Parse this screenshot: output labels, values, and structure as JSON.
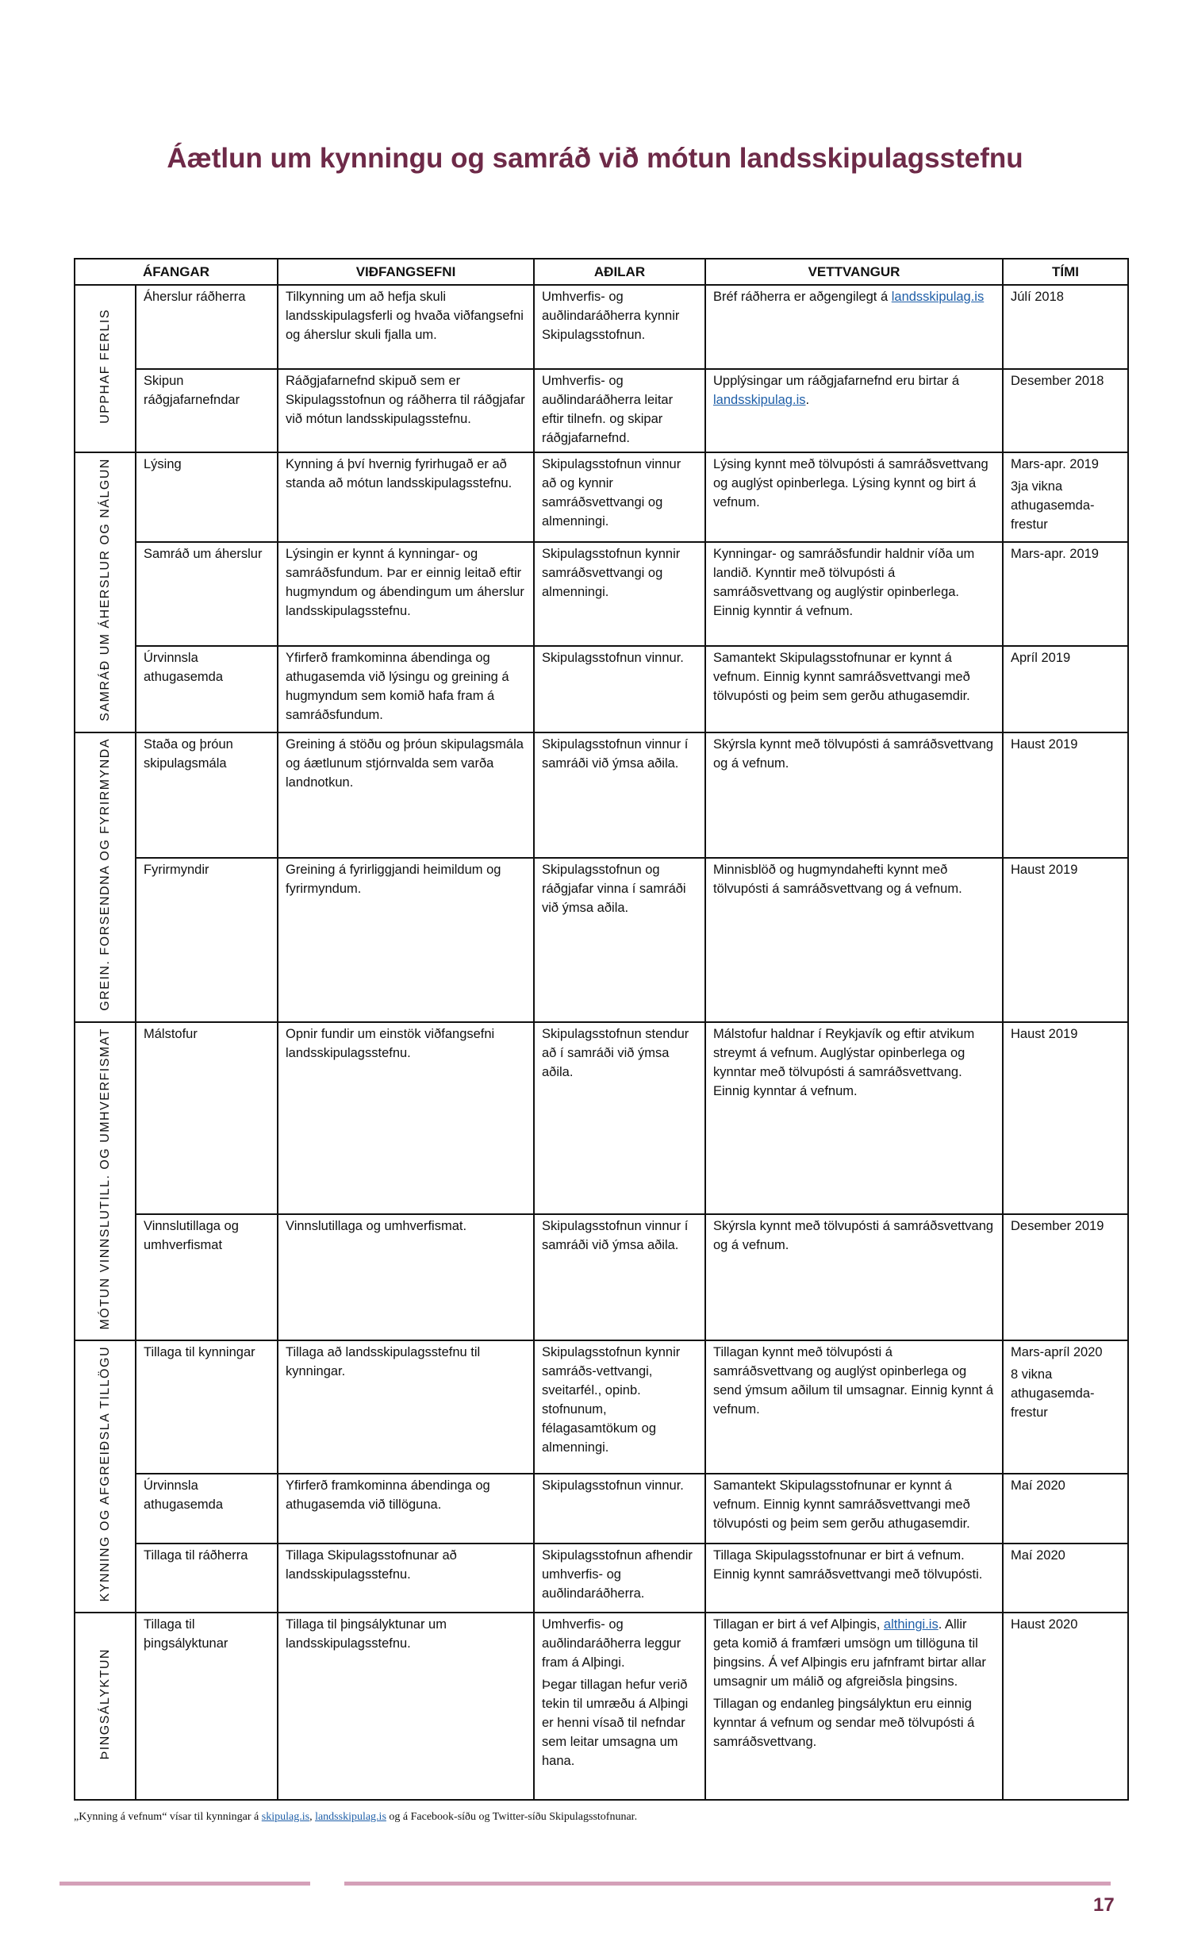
{
  "title": "Áætlun um kynningu og samráð við mótun landsskipulagsstefnu",
  "table": {
    "headers": [
      "ÁFANGAR",
      "VIÐFANGSEFNI",
      "AÐILAR",
      "VETTVANGUR",
      "TÍMI"
    ],
    "groups": [
      {
        "label": "UPPHAF FERLIS",
        "rows": [
          {
            "stage": "Áherslur ráðherra",
            "topic": "Tilkynning um að hefja skuli landsskipulagsferli og hvaða viðfangsefni og áherslur skuli fjalla um.",
            "parties": "Umhverfis- og auðlindaráðherra kynnir Skipulagsstofnun.",
            "venue": "Bréf ráðherra er aðgengilegt á",
            "venue_link": "landsskipulag.is",
            "venue_after": "",
            "time": "Júlí 2018",
            "time2": ""
          },
          {
            "stage": "Skipun ráðgjafarnefndar",
            "topic": "Ráðgjafarnefnd skipuð sem er Skipulagsstofnun og ráðherra til ráðgjafar við mótun landsskipulagsstefnu.",
            "parties": "Umhverfis- og auðlindaráðherra leitar eftir tilnefn. og skipar ráðgjafarnefnd.",
            "venue": "Upplýsingar um ráðgjafarnefnd eru birtar á",
            "venue_link": "landsskipulag.is",
            "venue_after": ".",
            "time": "Desember 2018",
            "time2": ""
          }
        ]
      },
      {
        "label": "SAMRÁÐ UM ÁHERSLUR OG NÁLGUN",
        "rows": [
          {
            "stage": "Lýsing",
            "topic": "Kynning á því hvernig fyrirhugað er að standa að mótun landsskipulagsstefnu.",
            "parties": "Skipulagsstofnun vinnur að og kynnir samráðsvettvangi og almenningi.",
            "venue": "Lýsing kynnt með tölvupósti á samráðsvettvang og auglýst opinberlega. Lýsing kynnt og birt á vefnum.",
            "time": "Mars-apr. 2019",
            "time2": "3ja vikna athugasemda-frestur"
          },
          {
            "stage": "Samráð um áherslur",
            "topic": "Lýsingin er kynnt á kynningar- og samráðsfundum. Þar er einnig leitað eftir hugmyndum og ábendingum um áherslur landsskipulagsstefnu.",
            "parties": "Skipulagsstofnun kynnir samráðsvettvangi og almenningi.",
            "venue": "Kynningar- og samráðsfundir haldnir víða um landið. Kynntir með tölvupósti á samráðsvettvang og auglýstir opinberlega. Einnig kynntir á vefnum.",
            "time": "Mars-apr. 2019",
            "time2": ""
          },
          {
            "stage": "Úrvinnsla athugasemda",
            "topic": "Yfirferð framkominna ábendinga og athugasemda við lýsingu og greining á hugmyndum sem komið hafa fram á samráðsfundum.",
            "parties": "Skipulagsstofnun vinnur.",
            "venue": "Samantekt Skipulagsstofnunar er kynnt á vefnum. Einnig kynnt samráðsvettvangi með tölvupósti og þeim sem gerðu athugasemdir.",
            "time": "Apríl 2019",
            "time2": ""
          }
        ]
      },
      {
        "label": "GREIN. FORSENDNA OG FYRIRMYNDA",
        "rows": [
          {
            "stage": "Staða og þróun skipulagsmála",
            "topic": "Greining á stöðu og þróun skipulagsmála og áætlunum stjórnvalda sem varða landnotkun.",
            "parties": "Skipulagsstofnun vinnur í samráði við ýmsa aðila.",
            "venue": "Skýrsla kynnt með tölvupósti á samráðsvettvang og á vefnum.",
            "time": "Haust 2019",
            "time2": ""
          },
          {
            "stage": "Fyrirmyndir",
            "topic": "Greining á fyrirliggjandi heimildum og fyrirmyndum.",
            "parties": "Skipulagsstofnun og ráðgjafar vinna í samráði við ýmsa aðila.",
            "venue": "Minnisblöð og hugmyndahefti kynnt með tölvupósti á samráðsvettvang og á vefnum.",
            "time": "Haust 2019",
            "time2": ""
          }
        ]
      },
      {
        "label": "MÓTUN VINNSLUTILL. OG UMHVERFISMAT",
        "rows": [
          {
            "stage": "Málstofur",
            "topic": "Opnir fundir um einstök viðfangsefni landsskipulagsstefnu.",
            "parties": "Skipulagsstofnun stendur að í samráði við ýmsa aðila.",
            "venue": "Málstofur haldnar í Reykjavík og eftir atvikum streymt á vefnum. Auglýstar opinberlega og kynntar með tölvupósti á samráðsvettvang. Einnig kynntar á vefnum.",
            "time": "Haust 2019",
            "time2": ""
          },
          {
            "stage": "Vinnslutillaga og umhverfismat",
            "topic": "Vinnslutillaga og umhverfismat.",
            "parties": "Skipulagsstofnun vinnur í samráði við ýmsa aðila.",
            "venue": "Skýrsla kynnt með tölvupósti á samráðsvettvang og á vefnum.",
            "time": "Desember 2019",
            "time2": ""
          }
        ]
      },
      {
        "label": "KYNNING OG AFGREIÐSLA TILLÖGU",
        "rows": [
          {
            "stage": "Tillaga til kynningar",
            "topic": "Tillaga að landsskipulagsstefnu til kynningar.",
            "parties": "Skipulagsstofnun kynnir samráðs-vettvangi, sveitarfél., opinb. stofnunum, félagasamtökum og almenningi.",
            "venue": "Tillagan kynnt með tölvupósti á samráðsvettvang og auglýst opinberlega og send ýmsum aðilum til umsagnar. Einnig kynnt á vefnum.",
            "time": "Mars-apríl 2020",
            "time2": "8 vikna athugasemda-frestur"
          },
          {
            "stage": "Úrvinnsla athugasemda",
            "topic": "Yfirferð framkominna ábendinga og athugasemda við tillöguna.",
            "parties": "Skipulagsstofnun vinnur.",
            "venue": "Samantekt Skipulagsstofnunar er kynnt á vefnum. Einnig kynnt samráðsvettvangi með tölvupósti og þeim sem gerðu athugasemdir.",
            "time": "Maí 2020",
            "time2": ""
          },
          {
            "stage": "Tillaga til ráðherra",
            "topic": "Tillaga Skipulagsstofnunar að landsskipulagsstefnu.",
            "parties": "Skipulagsstofnun afhendir umhverfis- og auðlindaráðherra.",
            "venue": "Tillaga Skipulagsstofnunar er birt á vefnum. Einnig kynnt samráðsvettvangi með tölvupósti.",
            "time": "Maí 2020",
            "time2": ""
          }
        ]
      },
      {
        "label": "ÞINGSÁLYKTUN",
        "rows": [
          {
            "stage": "Tillaga til þingsályktunar",
            "topic": "Tillaga til þingsályktunar um landsskipulagsstefnu.",
            "parties": "Umhverfis- og auðlindaráðherra leggur fram á Alþingi.",
            "parties2": "Þegar tillagan hefur verið tekin til umræðu á Alþingi er henni vísað til nefndar sem leitar umsagna um hana.",
            "venue": "Tillagan er birt á vef Alþingis,",
            "venue_link": "althingi.is",
            "venue_after": ". Allir geta komið á framfæri umsögn um tillöguna til þingsins. Á vef Alþingis eru jafnframt birtar allar umsagnir um málið og afgreiðsla þingsins.",
            "venue2": "Tillagan og endanleg þingsályktun eru einnig kynntar á vefnum og sendar með tölvupósti á samráðsvettvang.",
            "time": "Haust 2020",
            "time2": ""
          }
        ]
      }
    ]
  },
  "footnote": {
    "before": "„Kynning á vefnum“ vísar til kynningar á ",
    "link1": "skipulag.is",
    "sep": ", ",
    "link2": "landsskipulag.is",
    "after": " og á Facebook-síðu og Twitter-síðu Skipulagsstofnunar."
  },
  "page_number": "17",
  "colors": {
    "title": "#6e2a48",
    "link": "#1f5fa8",
    "rule": "#d4a0b8"
  }
}
